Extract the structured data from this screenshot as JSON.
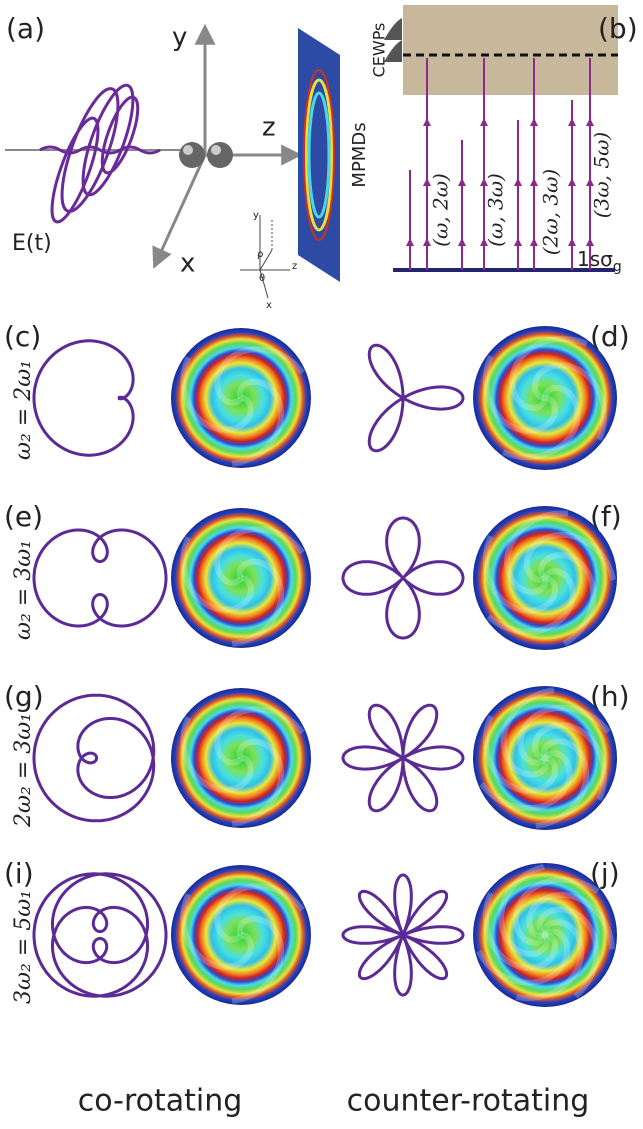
{
  "panel_a": {
    "label": "(a)",
    "axes": {
      "y": "y",
      "z": "z",
      "x": "x"
    },
    "field": "E(t)",
    "detector": "MPMDs",
    "inset": {
      "y": "y",
      "z": "z",
      "x": "x",
      "rho": "ρ",
      "theta": "θ"
    }
  },
  "panel_b": {
    "label": "(b)",
    "continuum": "CEWPs",
    "ground_state": {
      "text": "1sσ",
      "subscript": "g"
    },
    "pathways": [
      "(ω, 2ω)",
      "(ω, 3ω)",
      "(2ω, 3ω)",
      "(3ω, 5ω)"
    ]
  },
  "rows": [
    {
      "condition": "ω₂ = 2ω₁",
      "left_label": "(c)",
      "right_label": "(d)"
    },
    {
      "condition": "ω₂ = 3ω₁",
      "left_label": "(e)",
      "right_label": "(f)"
    },
    {
      "condition": "2ω₂ = 3ω₁",
      "left_label": "(g)",
      "right_label": "(h)"
    },
    {
      "condition": "3ω₂ = 5ω₁",
      "left_label": "(i)",
      "right_label": "(j)"
    }
  ],
  "columns": [
    "co-rotating",
    "counter-rotating"
  ]
}
